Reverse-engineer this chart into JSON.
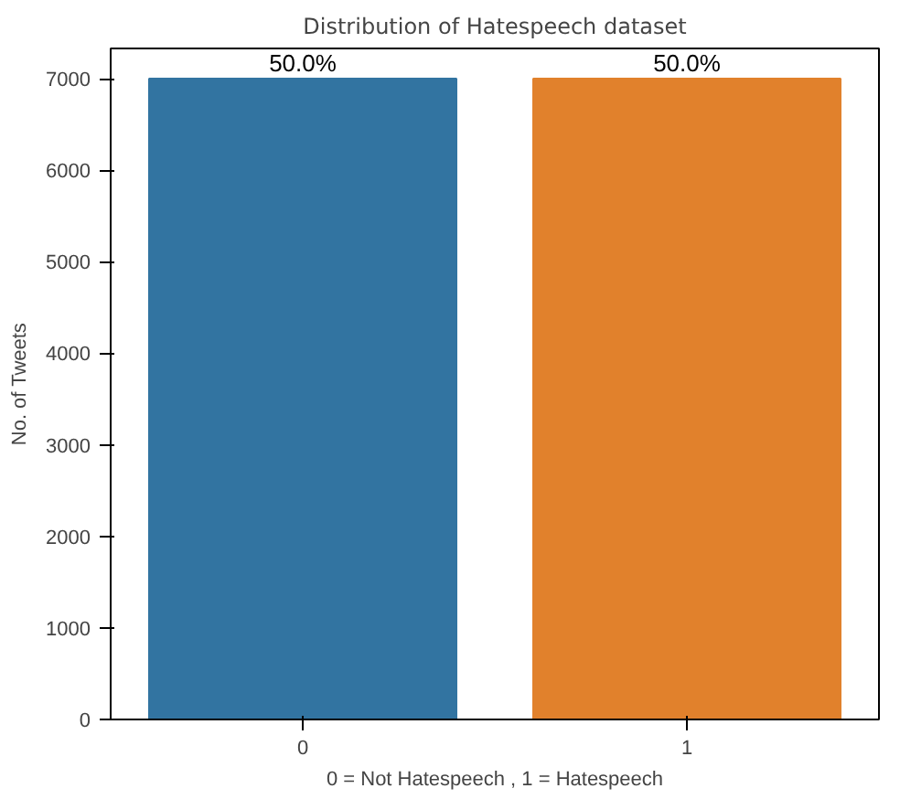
{
  "chart_data": {
    "type": "bar",
    "title": "Distribution of Hatespeech dataset",
    "xlabel": "0 = Not Hatespeech , 1 = Hatespeech",
    "ylabel": "No. of Tweets",
    "categories": [
      "0",
      "1"
    ],
    "values": [
      7000,
      7000
    ],
    "colors": [
      "#3274a1",
      "#e1812c"
    ],
    "annotations": [
      {
        "text": "50.0%",
        "x": "0",
        "y": 7000
      },
      {
        "text": "50.0%",
        "x": "1",
        "y": 7000
      }
    ],
    "ylim": [
      0,
      7330
    ],
    "yticks": [
      0,
      1000,
      2000,
      3000,
      4000,
      5000,
      6000,
      7000
    ],
    "grid": false
  }
}
